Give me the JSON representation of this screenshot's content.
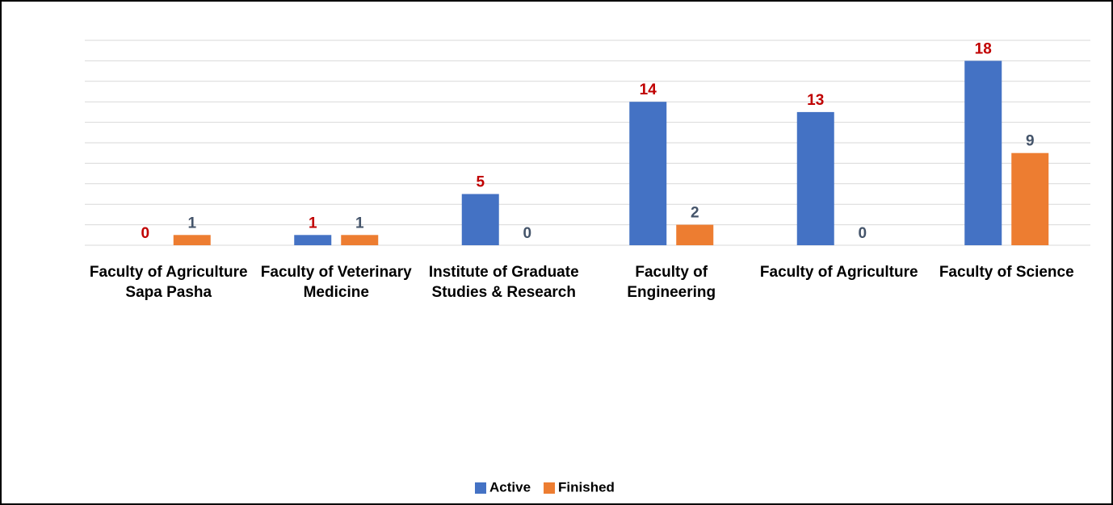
{
  "chart_data": {
    "type": "bar",
    "categories": [
      "Faculty of Agriculture Sapa Pasha",
      "Faculty of Veterinary Medicine",
      "Institute of Graduate Studies & Research",
      "Faculty of Engineering",
      "Faculty of Agriculture",
      "Faculty of Science"
    ],
    "series": [
      {
        "name": "Active",
        "color": "#4472c4",
        "label_color": "#c00000",
        "values": [
          0,
          1,
          5,
          14,
          13,
          18
        ]
      },
      {
        "name": "Finished",
        "color": "#ed7d31",
        "label_color": "#44546a",
        "values": [
          1,
          1,
          0,
          2,
          0,
          9
        ]
      }
    ],
    "ylim": [
      0,
      20
    ],
    "yticks": [
      0,
      2,
      4,
      6,
      8,
      10,
      12,
      14,
      16,
      18,
      20
    ],
    "grid": true,
    "legend": "bottom"
  }
}
